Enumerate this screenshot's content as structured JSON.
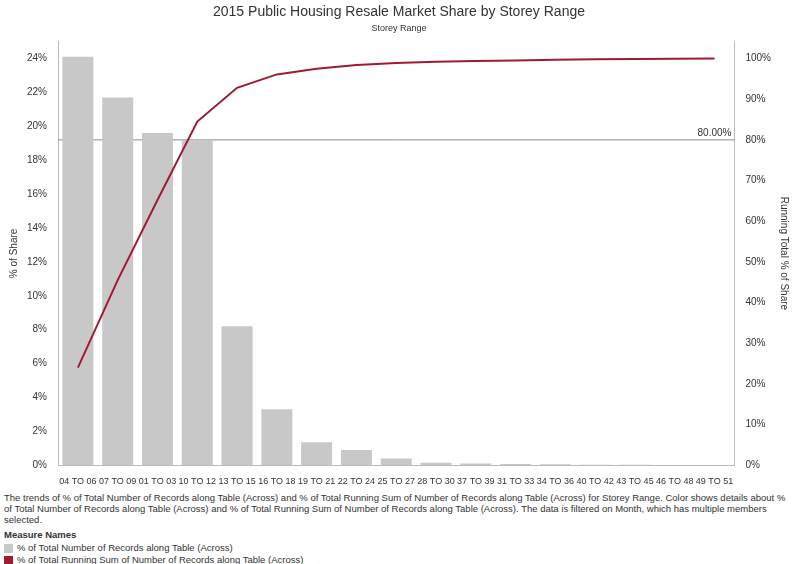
{
  "chart_data": {
    "type": "bar",
    "title": "2015 Public Housing Resale Market Share by Storey Range",
    "subtitle": "Storey Range",
    "caption": "The trends of % of Total Number of Records along Table (Across) and % of Total Running Sum of Number of Records along Table (Across) for Storey Range.  Color shows details about % of Total Number of Records along Table (Across) and % of Total Running Sum of Number of Records along Table (Across). The data is filtered on Month, which has multiple members selected.",
    "legend_title": "Measure Names",
    "categories": [
      "04 TO 06",
      "07 TO 09",
      "01 TO 03",
      "10 TO 12",
      "13 TO 15",
      "16 TO 18",
      "19 TO 21",
      "22 TO 24",
      "25 TO 27",
      "28 TO 30",
      "37 TO 39",
      "31 TO 33",
      "34 TO 36",
      "40 TO 42",
      "43 TO 45",
      "46 TO 48",
      "49 TO 51"
    ],
    "series": [
      {
        "name": "% of Total Number of Records along Table (Across)",
        "type": "bar",
        "color": "#c8c8c8",
        "values": [
          24.1,
          21.7,
          19.6,
          19.2,
          8.2,
          3.3,
          1.35,
          0.9,
          0.4,
          0.15,
          0.1,
          0.07,
          0.06,
          0.03,
          0.02,
          0.01,
          0.005
        ]
      },
      {
        "name": "% of Total Running Sum of Number of Records along Table (Across)",
        "type": "line",
        "color": "#9e1b32",
        "axis": "y2",
        "values": [
          24.0,
          45.5,
          65.2,
          84.5,
          92.8,
          96.1,
          97.5,
          98.4,
          98.9,
          99.2,
          99.4,
          99.55,
          99.7,
          99.8,
          99.9,
          99.95,
          100
        ]
      }
    ],
    "y_label": "% of Share",
    "y2_label": "Running Total % of Share",
    "ylim": [
      0,
      25
    ],
    "yticks": [
      {
        "value": 0,
        "label": "0%"
      },
      {
        "value": 2,
        "label": "2%"
      },
      {
        "value": 4,
        "label": "4%"
      },
      {
        "value": 6,
        "label": "6%"
      },
      {
        "value": 8,
        "label": "8%"
      },
      {
        "value": 10,
        "label": "10%"
      },
      {
        "value": 12,
        "label": "12%"
      },
      {
        "value": 14,
        "label": "14%"
      },
      {
        "value": 16,
        "label": "16%"
      },
      {
        "value": 18,
        "label": "18%"
      },
      {
        "value": 20,
        "label": "20%"
      },
      {
        "value": 22,
        "label": "22%"
      },
      {
        "value": 24,
        "label": "24%"
      }
    ],
    "y2lim": [
      0,
      104.17
    ],
    "y2ticks": [
      {
        "value": 0,
        "label": "0%"
      },
      {
        "value": 10,
        "label": "10%"
      },
      {
        "value": 20,
        "label": "20%"
      },
      {
        "value": 30,
        "label": "30%"
      },
      {
        "value": 40,
        "label": "40%"
      },
      {
        "value": 50,
        "label": "50%"
      },
      {
        "value": 60,
        "label": "60%"
      },
      {
        "value": 70,
        "label": "70%"
      },
      {
        "value": 80,
        "label": "80%"
      },
      {
        "value": 90,
        "label": "90%"
      },
      {
        "value": 100,
        "label": "100%"
      }
    ],
    "annotations": [
      {
        "axis": "y2",
        "value": 80,
        "label": "80.00%"
      }
    ],
    "grid": false,
    "legend": "bottom-left"
  }
}
